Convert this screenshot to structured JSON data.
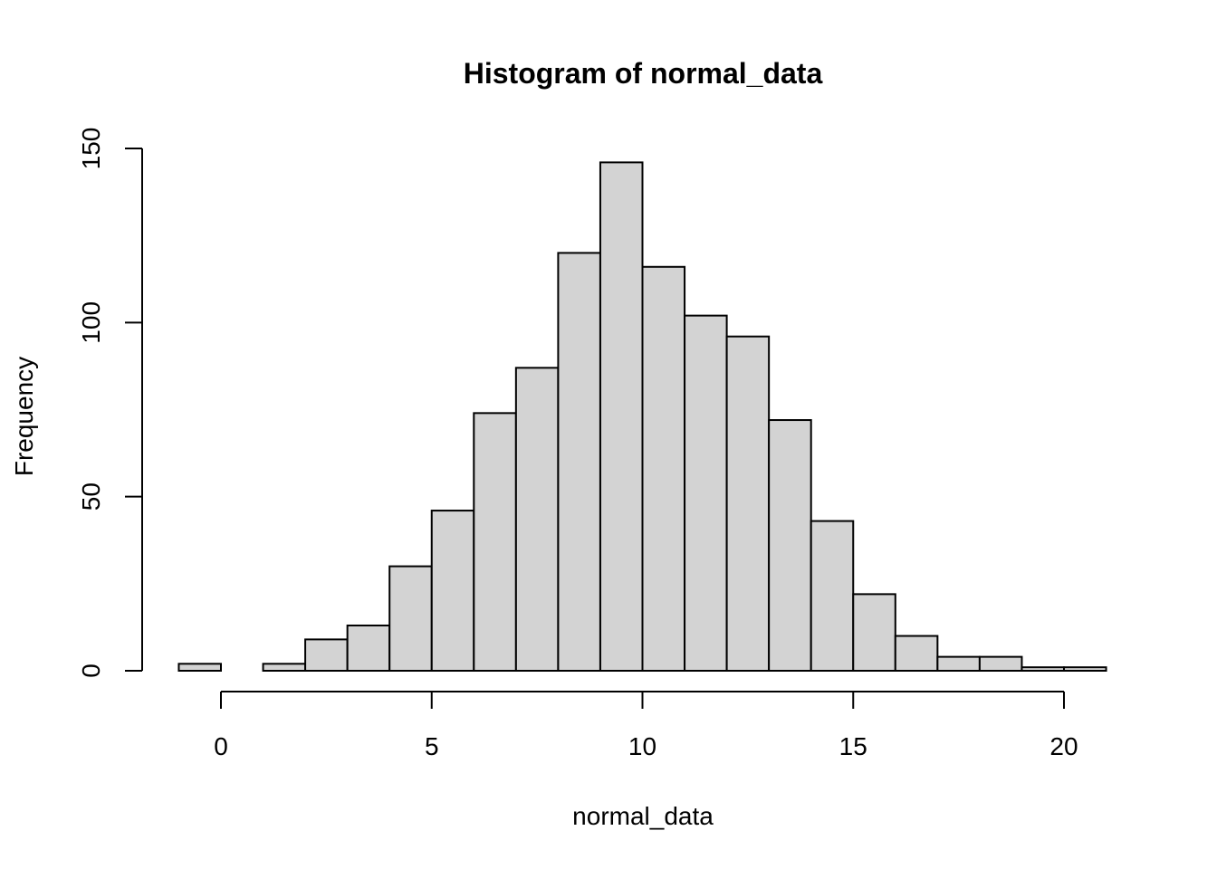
{
  "chart_data": {
    "type": "bar",
    "title": "Histogram of normal_data",
    "xlabel": "normal_data",
    "ylabel": "Frequency",
    "bin_edges": [
      -1,
      0,
      1,
      2,
      3,
      4,
      5,
      6,
      7,
      8,
      9,
      10,
      11,
      12,
      13,
      14,
      15,
      16,
      17,
      18,
      19,
      20,
      21
    ],
    "values": [
      2,
      0,
      2,
      9,
      13,
      30,
      46,
      74,
      87,
      120,
      146,
      116,
      102,
      96,
      72,
      43,
      22,
      10,
      4,
      4,
      1,
      1
    ],
    "xticks": [
      0,
      5,
      10,
      15,
      20
    ],
    "xtick_labels": [
      "0",
      "5",
      "10",
      "15",
      "20"
    ],
    "yticks": [
      0,
      50,
      100,
      150
    ],
    "ytick_labels": [
      "0",
      "50",
      "100",
      "150"
    ],
    "xlim": [
      0,
      20
    ],
    "ylim": [
      0,
      150
    ],
    "bar_fill": "#d3d3d3",
    "bar_stroke": "#000000",
    "grid": false
  }
}
